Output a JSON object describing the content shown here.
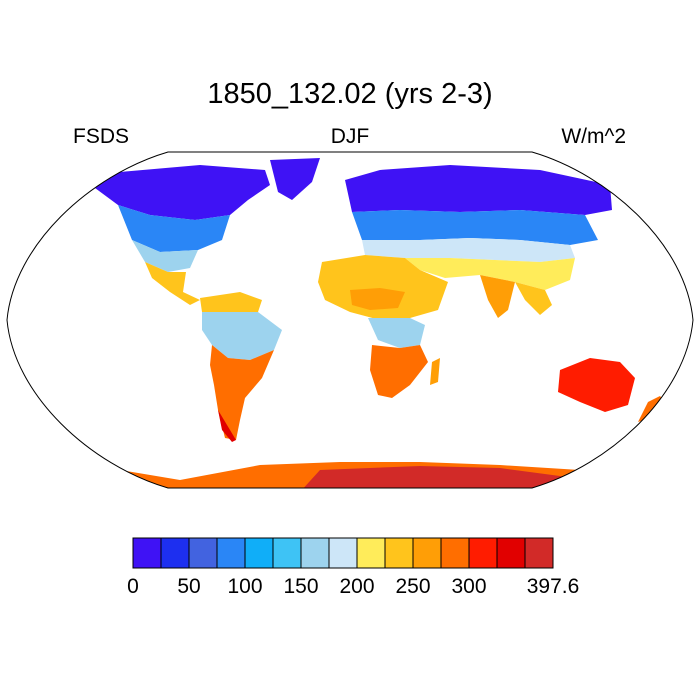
{
  "plot": {
    "title": "1850_132.02 (yrs 2-3)",
    "left_label": "FSDS",
    "center_label": "DJF",
    "right_label": "W/m^2"
  },
  "map": {
    "projection": "robinson",
    "variable": "FSDS",
    "season": "DJF",
    "units": "W/m^2"
  },
  "colorbar": {
    "colors": [
      "#3f12f5",
      "#1d2ff0",
      "#4263e0",
      "#2a86f6",
      "#10aef8",
      "#3ec3f5",
      "#9dd3ee",
      "#cde6f8",
      "#ffec5a",
      "#ffc41c",
      "#ff9e06",
      "#ff6e00",
      "#ff1c00",
      "#e10000",
      "#d22a28"
    ],
    "tick_labels": [
      "0",
      "50",
      "100",
      "150",
      "200",
      "250",
      "300",
      "397.6"
    ],
    "tick_boundaries": [
      0,
      2,
      4,
      6,
      8,
      10,
      12,
      15
    ]
  }
}
